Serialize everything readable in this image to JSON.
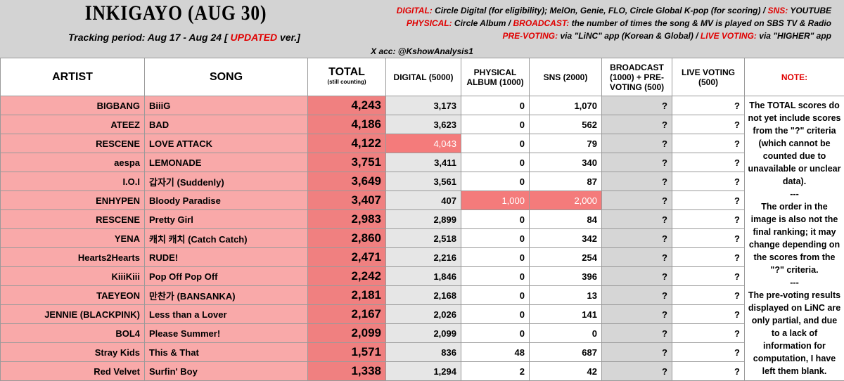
{
  "header": {
    "title": "INKIGAYO (AUG 30)",
    "tracking": {
      "before": "Tracking period: Aug 17 - Aug 24 [",
      "highlight": "UPDATED",
      "after": "ver.]"
    },
    "legend": [
      [
        {
          "label": "DIGITAL:",
          "text": "Circle Digital (for eligibility); MelOn, Genie, FLO, Circle Global K-pop (for scoring) /"
        },
        {
          "label": "SNS:",
          "text": "YOUTUBE"
        }
      ],
      [
        {
          "label": "PHYSICAL:",
          "text": "Circle Album /"
        },
        {
          "label": "BROADCAST:",
          "text": "the number of times the song & MV is played on SBS TV & Radio"
        }
      ],
      [
        {
          "label": "PRE-VOTING:",
          "text": "via \"LiNC\" app (Korean & Global) /"
        },
        {
          "label": "LIVE VOTING:",
          "text": "via \"HIGHER\" app"
        }
      ]
    ],
    "account": "X acc: @KshowAnalysis1"
  },
  "table": {
    "columns": [
      "ARTIST",
      "SONG",
      "TOTAL",
      "DIGITAL (5000)",
      "PHYSICAL ALBUM (1000)",
      "SNS (2000)",
      "BROADCAST (1000) + PRE-VOTING (500)",
      "LIVE VOTING (500)"
    ],
    "total_note": "(still counting)",
    "rows": [
      [
        "BIGBANG",
        "BiiiG",
        "4,243",
        "3,173",
        "0",
        "1,070",
        "?",
        "?"
      ],
      [
        "ATEEZ",
        "BAD",
        "4,186",
        "3,623",
        "0",
        "562",
        "?",
        "?"
      ],
      [
        "RESCENE",
        "LOVE ATTACK",
        "4,122",
        "4,043",
        "0",
        "79",
        "?",
        "?"
      ],
      [
        "aespa",
        "LEMONADE",
        "3,751",
        "3,411",
        "0",
        "340",
        "?",
        "?"
      ],
      [
        "I.O.I",
        "갑자기 (Suddenly)",
        "3,649",
        "3,561",
        "0",
        "87",
        "?",
        "?"
      ],
      [
        "ENHYPEN",
        "Bloody Paradise",
        "3,407",
        "407",
        "1,000",
        "2,000",
        "?",
        "?"
      ],
      [
        "RESCENE",
        "Pretty Girl",
        "2,983",
        "2,899",
        "0",
        "84",
        "?",
        "?"
      ],
      [
        "YENA",
        "캐치 캐치 (Catch Catch)",
        "2,860",
        "2,518",
        "0",
        "342",
        "?",
        "?"
      ],
      [
        "Hearts2Hearts",
        "RUDE!",
        "2,471",
        "2,216",
        "0",
        "254",
        "?",
        "?"
      ],
      [
        "KiiiKiii",
        "Pop Off Pop Off",
        "2,242",
        "1,846",
        "0",
        "396",
        "?",
        "?"
      ],
      [
        "TAEYEON",
        "만찬가 (BANSANKA)",
        "2,181",
        "2,168",
        "0",
        "13",
        "?",
        "?"
      ],
      [
        "JENNIE (BLACKPINK)",
        "Less than a Lover",
        "2,167",
        "2,026",
        "0",
        "141",
        "?",
        "?"
      ],
      [
        "BOL4",
        "Please Summer!",
        "2,099",
        "2,099",
        "0",
        "0",
        "?",
        "?"
      ],
      [
        "Stray Kids",
        "This & That",
        "1,571",
        "836",
        "48",
        "687",
        "?",
        "?"
      ],
      [
        "Red Velvet",
        "Surfin' Boy",
        "1,338",
        "1,294",
        "2",
        "42",
        "?",
        "?"
      ]
    ]
  },
  "note": {
    "title": "NOTE:",
    "paragraphs": [
      "The TOTAL scores do not yet include scores from the \"?\" criteria (which cannot be counted due to unavailable or unclear data).",
      "---",
      "The order in the image is also not the final ranking; it may change depending on the scores from the \"?\" criteria.",
      "---",
      "The pre-voting results displayed on LiNC are only partial, and due to a lack of information for computation, I have left them blank."
    ]
  }
}
